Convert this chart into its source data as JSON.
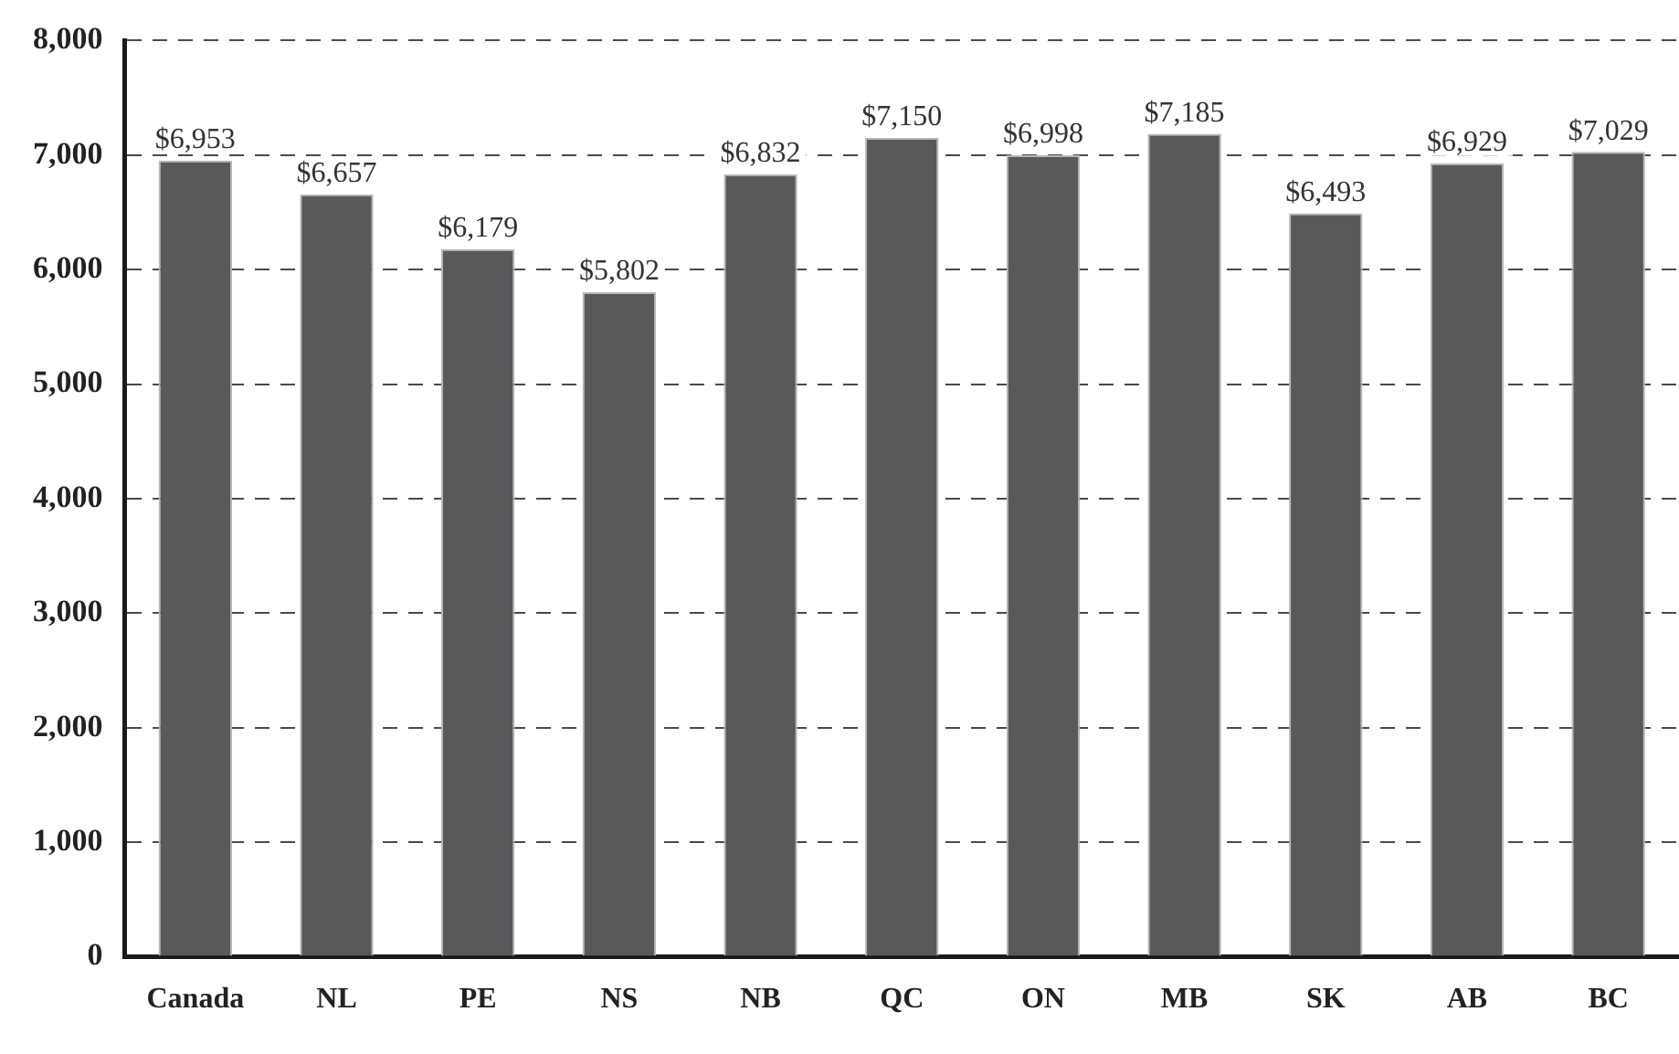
{
  "chart_data": {
    "type": "bar",
    "categories": [
      "Canada",
      "NL",
      "PE",
      "NS",
      "NB",
      "QC",
      "ON",
      "MB",
      "SK",
      "AB",
      "BC"
    ],
    "values": [
      6953,
      6657,
      6179,
      5802,
      6832,
      7150,
      6998,
      7185,
      6493,
      6929,
      7029
    ],
    "value_labels": [
      "$6,953",
      "$6,657",
      "$6,179",
      "$5,802",
      "$6,832",
      "$7,150",
      "$6,998",
      "$7,185",
      "$6,493",
      "$6,929",
      "$7,029"
    ],
    "color": "#58595b",
    "ylim": [
      0,
      8000
    ],
    "yticks": [
      0,
      {
        "value": 1000,
        "label": "1,000"
      },
      {
        "value": 2000,
        "label": "2,000"
      },
      {
        "value": 3000,
        "label": "3,000"
      },
      {
        "value": 4000,
        "label": "4,000"
      },
      {
        "value": 5000,
        "label": "5,000"
      },
      {
        "value": 6000,
        "label": "6,000"
      },
      {
        "value": 7000,
        "label": "7,000"
      },
      {
        "value": 8000,
        "label": "8,000"
      }
    ],
    "grid": "y"
  }
}
